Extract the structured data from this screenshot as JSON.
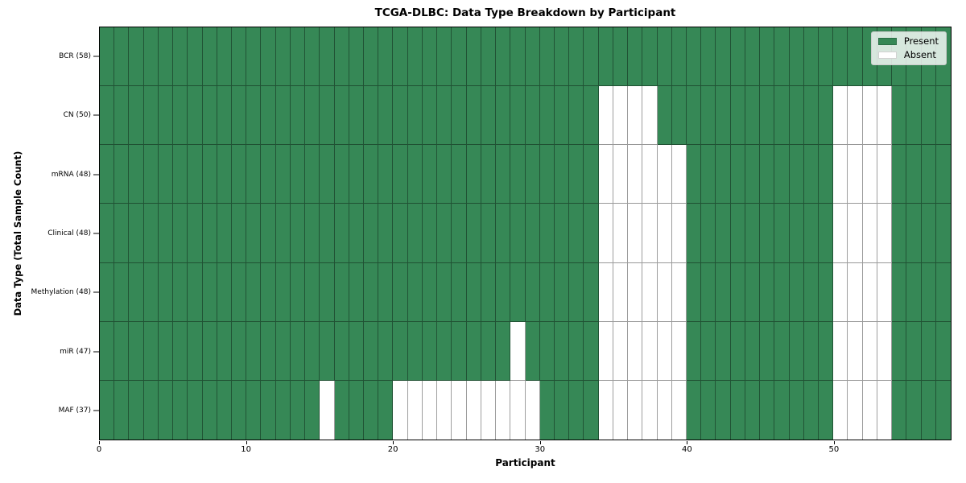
{
  "chart_data": {
    "type": "heatmap",
    "title": "TCGA-DLBC: Data Type Breakdown by Participant",
    "xlabel": "Participant",
    "ylabel": "Data Type (Total Sample Count)",
    "n_participants": 58,
    "x_ticks": [
      0,
      10,
      20,
      30,
      40,
      50
    ],
    "value_legend": {
      "present_label": "Present",
      "absent_label": "Absent"
    },
    "legend_position": "upper right",
    "grid": true,
    "rows": [
      {
        "label": "BCR (58)",
        "data_type": "BCR",
        "present_count": 58,
        "absent_participants": []
      },
      {
        "label": "CN (50)",
        "data_type": "CN",
        "present_count": 50,
        "absent_participants": [
          34,
          35,
          36,
          37,
          50,
          51,
          52,
          53
        ]
      },
      {
        "label": "mRNA (48)",
        "data_type": "mRNA",
        "present_count": 48,
        "absent_participants": [
          34,
          35,
          36,
          37,
          38,
          39,
          50,
          51,
          52,
          53
        ]
      },
      {
        "label": "Clinical (48)",
        "data_type": "Clinical",
        "present_count": 48,
        "absent_participants": [
          34,
          35,
          36,
          37,
          38,
          39,
          50,
          51,
          52,
          53
        ]
      },
      {
        "label": "Methylation (48)",
        "data_type": "Methylation",
        "present_count": 48,
        "absent_participants": [
          34,
          35,
          36,
          37,
          38,
          39,
          50,
          51,
          52,
          53
        ]
      },
      {
        "label": "miR (47)",
        "data_type": "miR",
        "present_count": 47,
        "absent_participants": [
          28,
          34,
          35,
          36,
          37,
          38,
          39,
          50,
          51,
          52,
          53
        ]
      },
      {
        "label": "MAF (37)",
        "data_type": "MAF",
        "present_count": 37,
        "absent_participants": [
          15,
          20,
          21,
          22,
          23,
          24,
          25,
          26,
          27,
          28,
          29,
          34,
          35,
          36,
          37,
          38,
          39,
          50,
          51,
          52,
          53
        ]
      }
    ],
    "colors": {
      "present": "#368856",
      "absent": "#ffffff",
      "spine": "#000000",
      "cell_edge": "rgba(0,0,0,0.38)",
      "legend_bg": "rgba(255,255,255,0.8)"
    }
  }
}
